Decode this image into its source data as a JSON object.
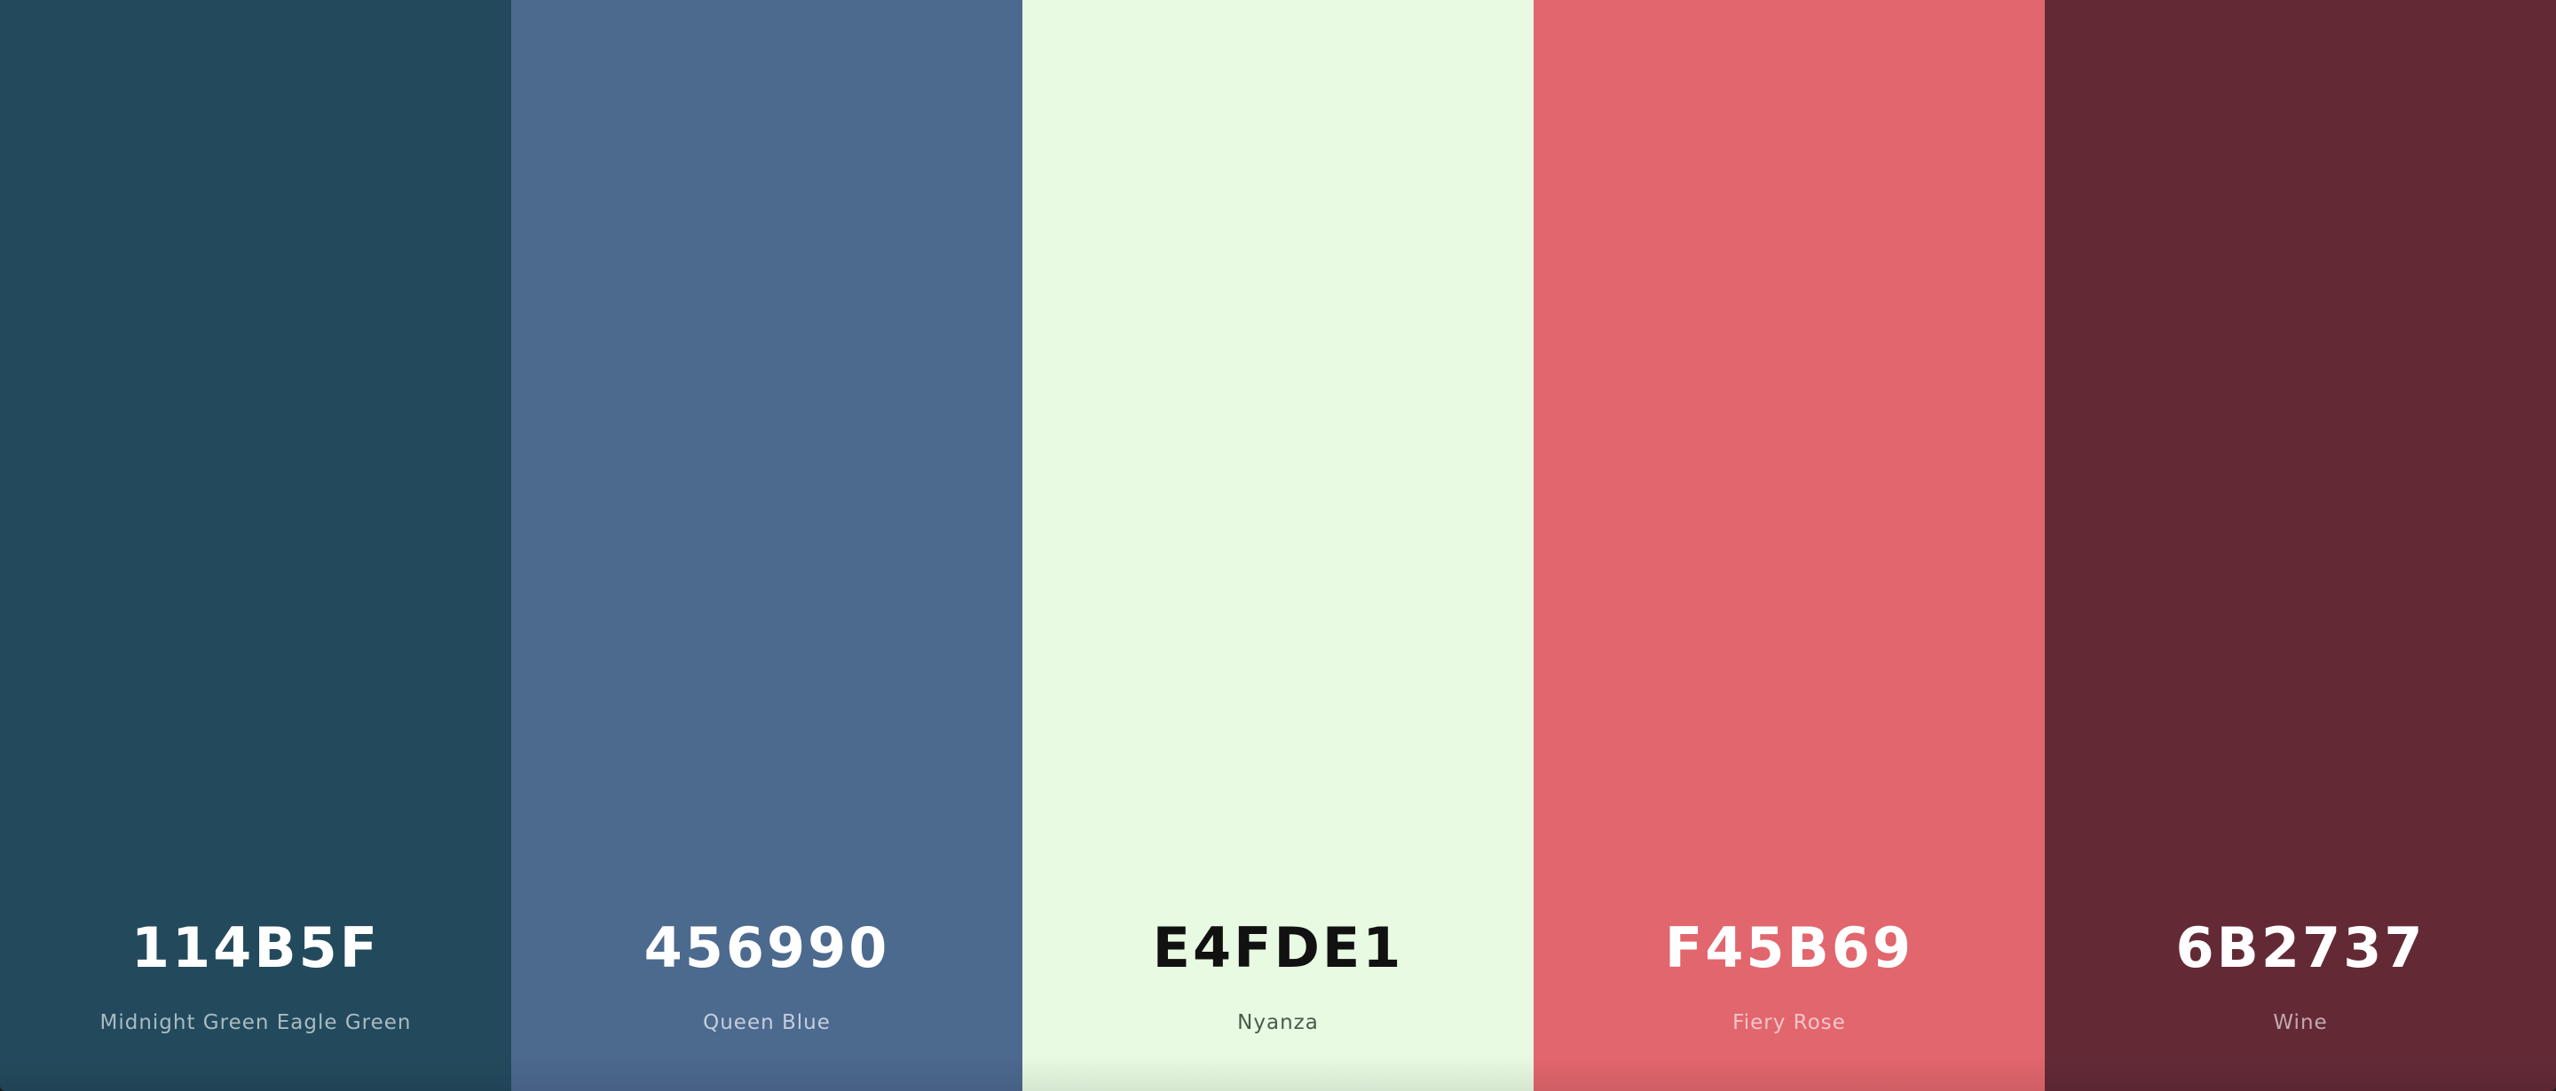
{
  "palette": {
    "swatches": [
      {
        "hex": "114B5F",
        "name": "Midnight Green Eagle Green",
        "background": "#234A5C",
        "hex_color": "#FFFFFF",
        "name_color": "#A9BBC3"
      },
      {
        "hex": "456990",
        "name": "Queen Blue",
        "background": "#4C698E",
        "hex_color": "#FFFFFF",
        "name_color": "#C4CFDD"
      },
      {
        "hex": "E4FDE1",
        "name": "Nyanza",
        "background": "#E8FAE2",
        "hex_color": "#111111",
        "name_color": "#4A5A4A"
      },
      {
        "hex": "F45B69",
        "name": "Fiery Rose",
        "background": "#E2666D",
        "hex_color": "#FFFFFF",
        "name_color": "#F6C5C8"
      },
      {
        "hex": "6B2737",
        "name": "Wine",
        "background": "#632A36",
        "hex_color": "#FFFFFF",
        "name_color": "#C4A9AF"
      }
    ]
  }
}
